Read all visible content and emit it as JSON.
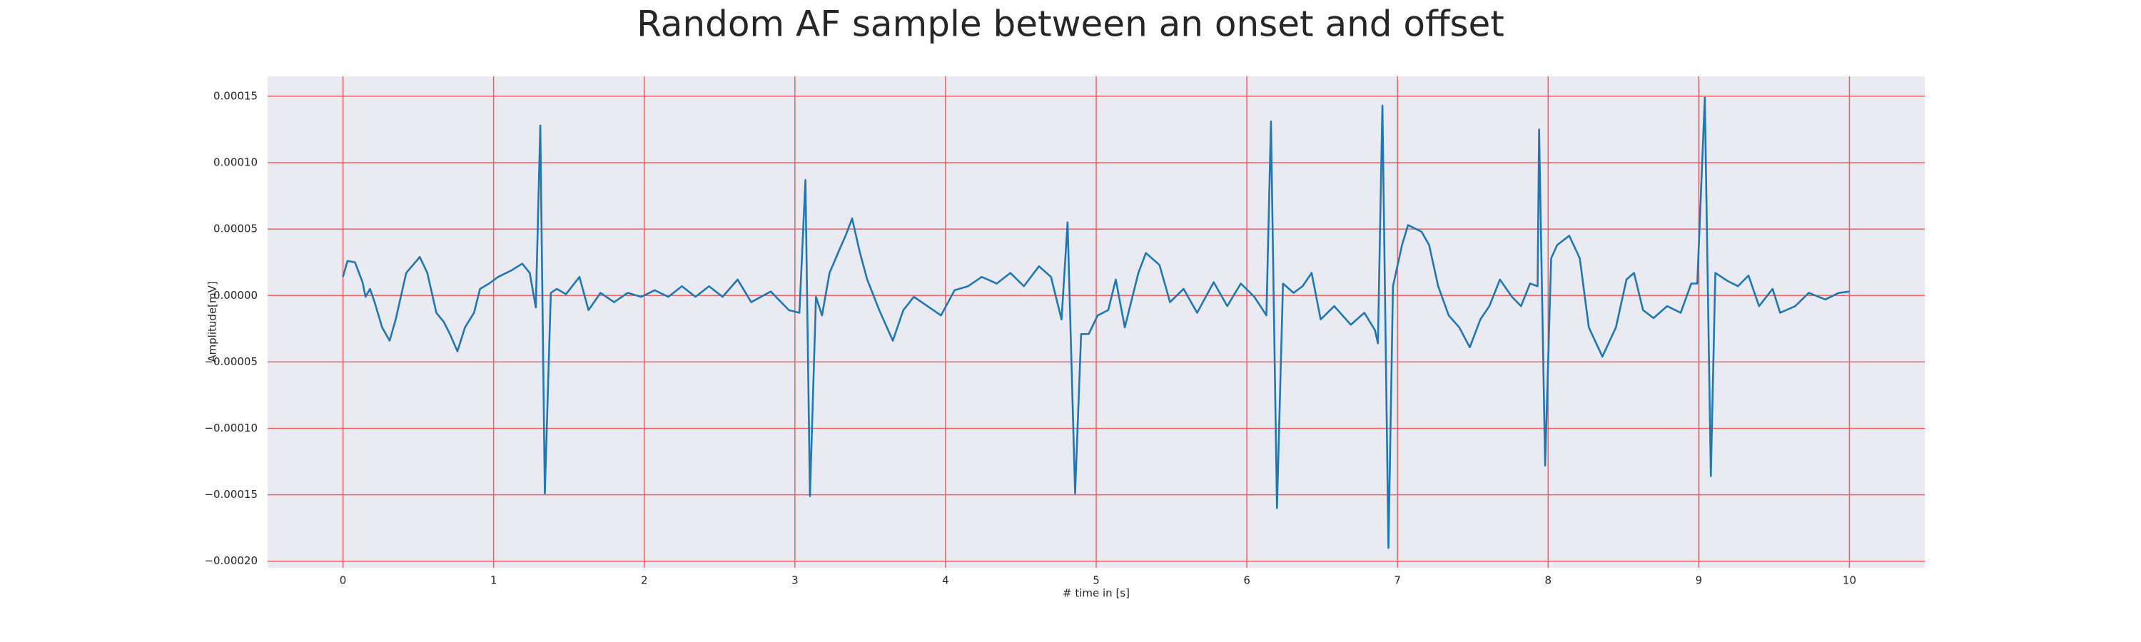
{
  "chart_data": {
    "type": "line",
    "title": "Random AF sample between an onset and offset",
    "x_label": "# time in [s]",
    "y_label": "Amplitude[mV]",
    "xlim": [
      -0.5,
      10.5
    ],
    "ylim": [
      -0.000205,
      0.000165
    ],
    "xticks": [
      0,
      1,
      2,
      3,
      4,
      5,
      6,
      7,
      8,
      9,
      10
    ],
    "yticks": [
      {
        "value": 0.00015,
        "label": "0.00015"
      },
      {
        "value": 0.0001,
        "label": "0.00010"
      },
      {
        "value": 5e-05,
        "label": "0.00005"
      },
      {
        "value": 0,
        "label": "0.00000"
      },
      {
        "value": -5e-05,
        "label": "−0.00005"
      },
      {
        "value": -0.0001,
        "label": "−0.00010"
      },
      {
        "value": -0.00015,
        "label": "−0.00015"
      },
      {
        "value": -0.0002,
        "label": "−0.00020"
      }
    ],
    "grid": true,
    "grid_color": "#f06060",
    "background": "#eaeaf2",
    "x": [
      0,
      0.03,
      0.08,
      0.13,
      0.15,
      0.18,
      0.21,
      0.26,
      0.31,
      0.35,
      0.42,
      0.51,
      0.56,
      0.62,
      0.67,
      0.71,
      0.76,
      0.81,
      0.87,
      0.91,
      0.97,
      1.03,
      1.12,
      1.19,
      1.24,
      1.28,
      1.31,
      1.34,
      1.38,
      1.42,
      1.48,
      1.57,
      1.63,
      1.71,
      1.8,
      1.89,
      1.98,
      2.07,
      2.16,
      2.25,
      2.34,
      2.43,
      2.52,
      2.62,
      2.71,
      2.84,
      2.96,
      3.03,
      3.07,
      3.1,
      3.14,
      3.18,
      3.23,
      3.29,
      3.34,
      3.38,
      3.43,
      3.48,
      3.56,
      3.65,
      3.72,
      3.79,
      3.88,
      3.97,
      4.06,
      4.15,
      4.24,
      4.34,
      4.43,
      4.52,
      4.62,
      4.7,
      4.77,
      4.81,
      4.86,
      4.9,
      4.95,
      5.01,
      5.08,
      5.13,
      5.19,
      5.28,
      5.33,
      5.42,
      5.49,
      5.58,
      5.67,
      5.78,
      5.87,
      5.96,
      6.05,
      6.13,
      6.16,
      6.2,
      6.24,
      6.31,
      6.37,
      6.43,
      6.49,
      6.58,
      6.69,
      6.78,
      6.85,
      6.87,
      6.9,
      6.94,
      6.97,
      7.03,
      7.07,
      7.16,
      7.21,
      7.27,
      7.34,
      7.41,
      7.48,
      7.55,
      7.61,
      7.68,
      7.76,
      7.82,
      7.88,
      7.93,
      7.94,
      7.98,
      8.02,
      8.06,
      8.14,
      8.21,
      8.27,
      8.36,
      8.45,
      8.52,
      8.57,
      8.63,
      8.7,
      8.79,
      8.88,
      8.95,
      8.99,
      9.04,
      9.08,
      9.11,
      9.19,
      9.26,
      9.33,
      9.4,
      9.49,
      9.54,
      9.64,
      9.73,
      9.84,
      9.93,
      10.0
    ],
    "series": [
      {
        "color": "#1f77b4",
        "values": [
          1.4e-05,
          2.6e-05,
          2.5e-05,
          1e-05,
          -1e-06,
          5e-06,
          -5e-06,
          -2.4e-05,
          -3.4e-05,
          -1.8e-05,
          1.7e-05,
          2.9e-05,
          1.7e-05,
          -1.3e-05,
          -2e-05,
          -2.9e-05,
          -4.2e-05,
          -2.4e-05,
          -1.3e-05,
          5e-06,
          9e-06,
          1.4e-05,
          1.9e-05,
          2.4e-05,
          1.7e-05,
          -9e-06,
          0.000128,
          -0.000149,
          2e-06,
          5e-06,
          1e-06,
          1.4e-05,
          -1.1e-05,
          2e-06,
          -5e-06,
          2e-06,
          -1e-06,
          4e-06,
          -1e-06,
          7e-06,
          -1e-06,
          7e-06,
          -1e-06,
          1.2e-05,
          -5e-06,
          3e-06,
          -1.1e-05,
          -1.3e-05,
          8.7e-05,
          -0.000151,
          -1e-06,
          -1.5e-05,
          1.7e-05,
          3.3e-05,
          4.6e-05,
          5.8e-05,
          3.3e-05,
          1.2e-05,
          -1.1e-05,
          -3.4e-05,
          -1.1e-05,
          -1e-06,
          -8e-06,
          -1.5e-05,
          4e-06,
          7e-06,
          1.4e-05,
          9e-06,
          1.7e-05,
          7e-06,
          2.2e-05,
          1.4e-05,
          -1.8e-05,
          5.5e-05,
          -0.000149,
          -2.9e-05,
          -2.9e-05,
          -1.5e-05,
          -1.1e-05,
          1.2e-05,
          -2.4e-05,
          1.7e-05,
          3.2e-05,
          2.3e-05,
          -5e-06,
          5e-06,
          -1.3e-05,
          1e-05,
          -8e-06,
          9e-06,
          -1e-06,
          -1.5e-05,
          0.000131,
          -0.00016,
          9e-06,
          2e-06,
          7e-06,
          1.7e-05,
          -1.8e-05,
          -8e-06,
          -2.2e-05,
          -1.3e-05,
          -2.6e-05,
          -3.6e-05,
          0.000143,
          -0.00019,
          7e-06,
          3.8e-05,
          5.3e-05,
          4.8e-05,
          3.8e-05,
          7e-06,
          -1.5e-05,
          -2.4e-05,
          -3.9e-05,
          -1.8e-05,
          -8e-06,
          1.2e-05,
          -1e-06,
          -8e-06,
          9e-06,
          7e-06,
          0.000125,
          -0.000128,
          2.8e-05,
          3.8e-05,
          4.5e-05,
          2.8e-05,
          -2.4e-05,
          -4.6e-05,
          -2.4e-05,
          1.2e-05,
          1.7e-05,
          -1.1e-05,
          -1.7e-05,
          -8e-06,
          -1.3e-05,
          9e-06,
          9e-06,
          0.000149,
          -0.000136,
          1.7e-05,
          1.1e-05,
          7e-06,
          1.5e-05,
          -8e-06,
          5e-06,
          -1.3e-05,
          -8e-06,
          2e-06,
          -3e-06,
          2e-06,
          3e-06
        ]
      }
    ]
  }
}
